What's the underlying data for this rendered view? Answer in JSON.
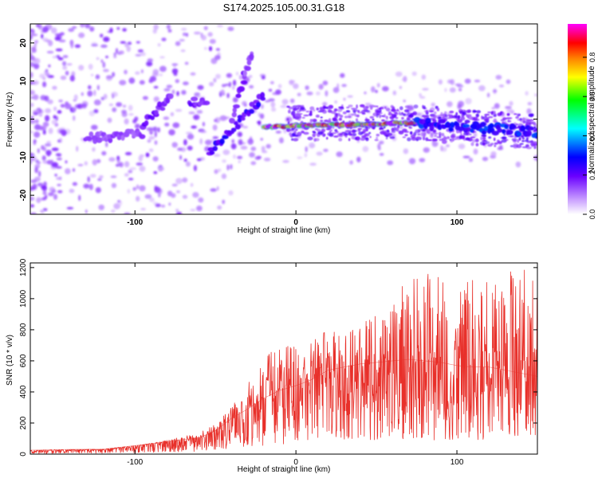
{
  "title": "S174.2025.105.00.31.G18",
  "chart_data": [
    {
      "type": "heatmap",
      "xlabel": "Height of straight line (km)",
      "ylabel": "Frequency (Hz)",
      "xlim": [
        -165,
        150
      ],
      "ylim": [
        -25,
        25
      ],
      "xticks": [
        -100,
        0,
        100
      ],
      "yticks": [
        -20,
        -10,
        0,
        10,
        20
      ],
      "colorbar": {
        "label": "Normalized spectral amplitude",
        "range": [
          0,
          0.97
        ],
        "ticks": [
          "0.0",
          "0.2",
          "0.4",
          "0.6",
          "0.8"
        ],
        "colors": [
          "#ffffff",
          "#c79bff",
          "#6a00ff",
          "#0000ff",
          "#00ffff",
          "#00ff00",
          "#ffff00",
          "#ff8000",
          "#ff0000",
          "#ff00ff"
        ]
      },
      "features": {
        "ridge_segments": [
          {
            "from": [
              -130,
              -5
            ],
            "to": [
              -95,
              -4
            ],
            "amplitude": 0.15
          },
          {
            "from": [
              -95,
              -2
            ],
            "to": [
              -78,
              6
            ],
            "amplitude": 0.2
          },
          {
            "from": [
              -66,
              5
            ],
            "to": [
              -56,
              4
            ],
            "amplitude": 0.2
          },
          {
            "from": [
              -54,
              -9
            ],
            "to": [
              -20,
              6
            ],
            "amplitude": 0.25
          },
          {
            "from": [
              -40,
              0
            ],
            "to": [
              -32,
              11
            ],
            "amplitude": 0.2
          },
          {
            "from": [
              -32,
              12
            ],
            "to": [
              -27,
              17
            ],
            "amplitude": 0.15
          },
          {
            "from": [
              -20,
              -2
            ],
            "to": [
              75,
              -1
            ],
            "amplitude": 0.95
          },
          {
            "from": [
              75,
              -1
            ],
            "to": [
              150,
              -3.5
            ],
            "amplitude": 0.3
          }
        ],
        "background_amplitude": 0.05
      }
    },
    {
      "type": "line",
      "xlabel": "Height of straight line (km)",
      "ylabel": "SNR (10 * v/v)",
      "xlim": [
        -165,
        150
      ],
      "ylim": [
        0,
        1230
      ],
      "xticks": [
        -100,
        0,
        100
      ],
      "yticks": [
        0,
        200,
        400,
        600,
        800,
        1000,
        1200
      ],
      "color": "#e8302a",
      "series": [
        {
          "x": [
            -165,
            -140,
            -120,
            -100,
            -80,
            -60,
            -50,
            -40,
            -30,
            -20,
            -10,
            0,
            10,
            20,
            30,
            40,
            50,
            60,
            70,
            80,
            90,
            100,
            110,
            120,
            130,
            140,
            150
          ],
          "y": [
            25,
            30,
            32,
            55,
            80,
            105,
            150,
            230,
            290,
            360,
            410,
            440,
            480,
            540,
            560,
            580,
            590,
            600,
            610,
            600,
            590,
            570,
            560,
            560,
            540,
            520,
            500
          ],
          "envelope": [
            20,
            25,
            25,
            50,
            90,
            140,
            190,
            320,
            450,
            620,
            700,
            690,
            720,
            820,
            800,
            850,
            900,
            950,
            1170,
            1180,
            1200,
            1080,
            1130,
            1230,
            1160,
            1220,
            1100
          ]
        }
      ]
    }
  ]
}
